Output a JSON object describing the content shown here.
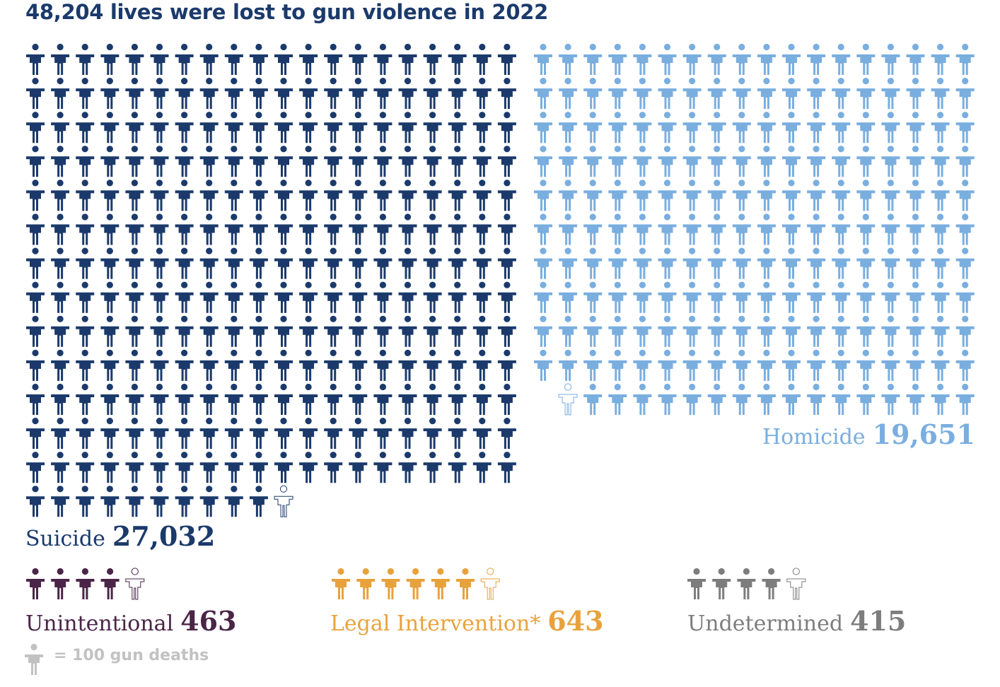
{
  "title": "48,204 lives were lost to gun violence in 2022",
  "key_text": "= 100 gun deaths",
  "chart_data": {
    "type": "pictogram",
    "title": "48,204 lives were lost to gun violence in 2022",
    "unit_per_icon": 100,
    "total": 48204,
    "series": [
      {
        "name": "Suicide",
        "value_label": "27,032",
        "value": 27032,
        "icons": 270,
        "partial_icon": true,
        "color": "#1b3a6b"
      },
      {
        "name": "Homicide",
        "value_label": "19,651",
        "value": 19651,
        "icons": 196,
        "partial_icon": true,
        "color": "#7aaedf"
      },
      {
        "name": "Unintentional",
        "value_label": "463",
        "value": 463,
        "icons": 4,
        "partial_icon": true,
        "color": "#4a2548"
      },
      {
        "name": "Legal Intervention*",
        "value_label": "643",
        "value": 643,
        "icons": 6,
        "partial_icon": true,
        "color": "#e8a23c"
      },
      {
        "name": "Undetermined",
        "value_label": "415",
        "value": 415,
        "icons": 4,
        "partial_icon": true,
        "color": "#7d7d7d"
      }
    ],
    "key_color": "#c2c2c2"
  }
}
